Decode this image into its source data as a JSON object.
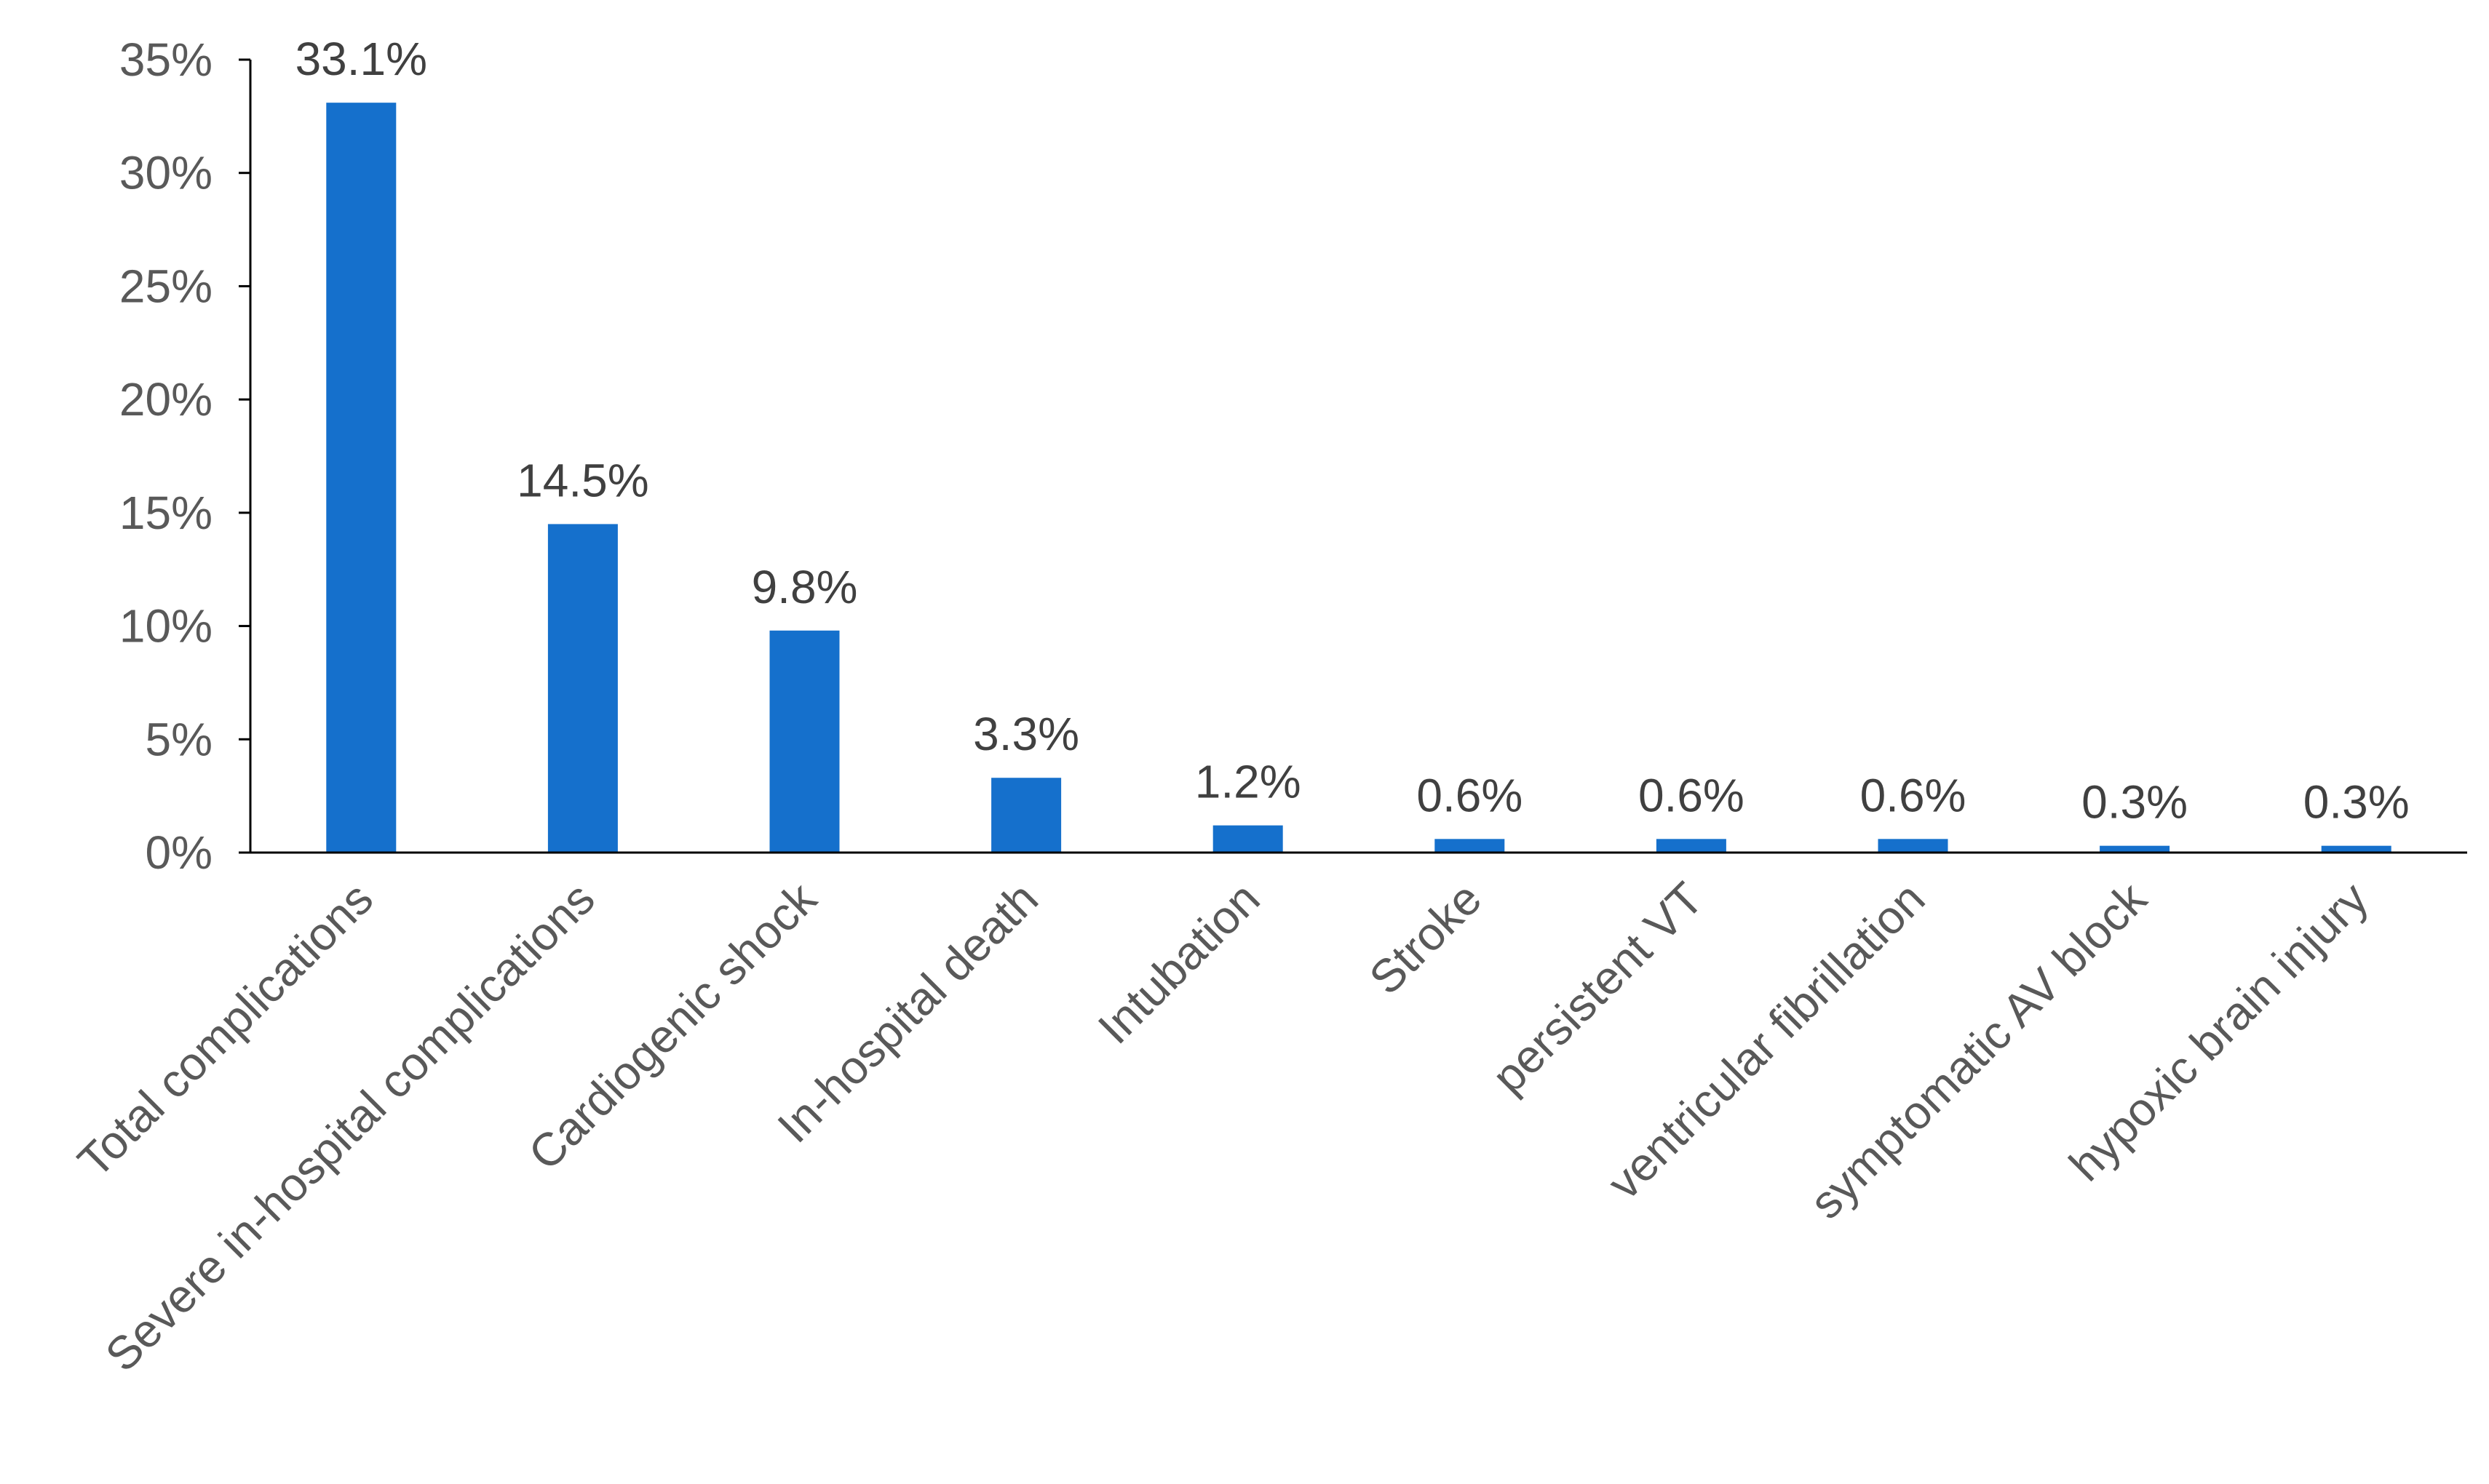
{
  "chart_data": {
    "type": "bar",
    "title": "",
    "xlabel": "",
    "ylabel": "",
    "categories": [
      "Total complications",
      "Severe in-hospital complications",
      "Cardiogenic shock",
      "In-hospital death",
      "Intubation",
      "Stroke",
      "persistent VT",
      "ventricular fibrillation",
      "symptomatic AV block",
      "hypoxic brain injury"
    ],
    "values": [
      33.1,
      14.5,
      9.8,
      3.3,
      1.2,
      0.6,
      0.6,
      0.6,
      0.3,
      0.3
    ],
    "data_labels": [
      "33.1%",
      "14.5%",
      "9.8%",
      "3.3%",
      "1.2%",
      "0.6%",
      "0.6%",
      "0.6%",
      "0.3%",
      "0.3%"
    ],
    "ylim": [
      0,
      35
    ],
    "y_ticks": [
      0,
      5,
      10,
      15,
      20,
      25,
      30,
      35
    ],
    "y_tick_labels": [
      "0%",
      "5%",
      "10%",
      "15%",
      "20%",
      "25%",
      "30%",
      "35%"
    ],
    "grid": false,
    "legend": "none",
    "colors": {
      "bar": "#1570CC",
      "axis": "#000000",
      "tick_text": "#595959",
      "label_text": "#404040"
    }
  }
}
